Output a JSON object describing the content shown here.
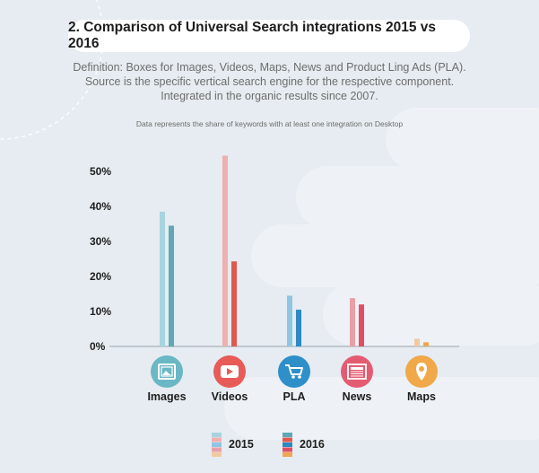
{
  "title": "2. Comparison of Universal Search integrations 2015 vs 2016",
  "definition": {
    "lines": [
      "Definition: Boxes for Images, Videos, Maps, News and Product Ling Ads (PLA).",
      "Source is the specific vertical search engine for the respective component.",
      "Integrated in the organic results since 2007."
    ]
  },
  "note": "Data represents the share of keywords with at least one integration on Desktop",
  "chart_data": {
    "type": "bar",
    "categories": [
      "Images",
      "Videos",
      "PLA",
      "News",
      "Maps"
    ],
    "icons": [
      "image-icon",
      "play-icon",
      "cart-icon",
      "newspaper-icon",
      "map-pin-icon"
    ],
    "category_colors": {
      "2015": [
        "#a8d4df",
        "#efb0b0",
        "#8fc6e4",
        "#e8a0a8",
        "#f3c9a1"
      ],
      "2016": [
        "#5fa8b6",
        "#e05852",
        "#2b89c3",
        "#df4f64",
        "#f1a653"
      ],
      "icon_bg": [
        "#6ab7c5",
        "#e85c58",
        "#2e8fc9",
        "#e35c72",
        "#f0a848"
      ]
    },
    "series": [
      {
        "name": "2015",
        "values": [
          38.5,
          54.5,
          14.5,
          13.8,
          2.2
        ]
      },
      {
        "name": "2016",
        "values": [
          34.5,
          24.3,
          10.5,
          12.0,
          1.2
        ]
      }
    ],
    "yticks": [
      "0%",
      "10%",
      "20%",
      "30%",
      "40%",
      "50%"
    ],
    "ylim": [
      0,
      55
    ],
    "legend_position": "bottom"
  }
}
